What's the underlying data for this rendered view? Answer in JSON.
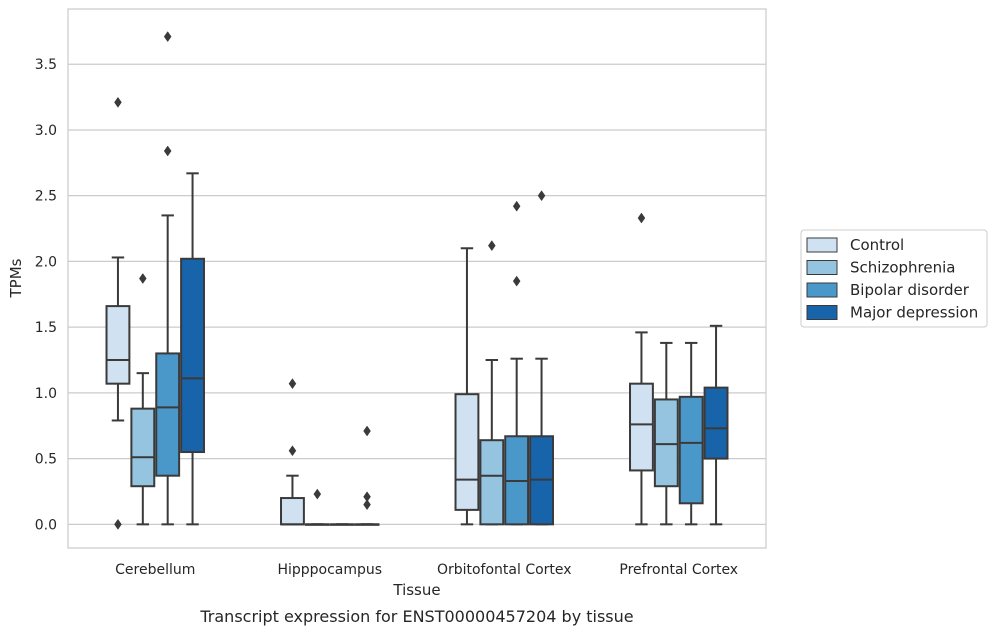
{
  "caption": "Transcript expression for ENST00000457204 by tissue",
  "chart_data": {
    "type": "box",
    "xlabel": "Tissue",
    "ylabel": "TPMs",
    "ylim": [
      -0.18,
      3.92
    ],
    "yticks": [
      "0.0",
      "0.5",
      "1.0",
      "1.5",
      "2.0",
      "2.5",
      "3.0",
      "3.5"
    ],
    "categories": [
      "Cerebellum",
      "Hipppocampus",
      "Orbitofontal Cortex",
      "Prefrontal Cortex"
    ],
    "grid": "horizontal",
    "legend_position": "right",
    "series": [
      {
        "name": "Control",
        "color": "#d0e1f2",
        "boxes": [
          {
            "whisker_low": 0.79,
            "q1": 1.07,
            "median": 1.25,
            "q3": 1.66,
            "whisker_high": 2.03,
            "outliers": [
              3.21,
              0.0
            ]
          },
          {
            "whisker_low": 0.0,
            "q1": 0.0,
            "median": 0.0,
            "q3": 0.2,
            "whisker_high": 0.37,
            "outliers": [
              0.56,
              1.07
            ]
          },
          {
            "whisker_low": 0.0,
            "q1": 0.11,
            "median": 0.34,
            "q3": 0.99,
            "whisker_high": 2.1,
            "outliers": []
          },
          {
            "whisker_low": 0.0,
            "q1": 0.41,
            "median": 0.76,
            "q3": 1.07,
            "whisker_high": 1.46,
            "outliers": [
              2.33
            ]
          }
        ]
      },
      {
        "name": "Schizophrenia",
        "color": "#94c4df",
        "boxes": [
          {
            "whisker_low": 0.0,
            "q1": 0.29,
            "median": 0.51,
            "q3": 0.88,
            "whisker_high": 1.15,
            "outliers": [
              1.87
            ]
          },
          {
            "whisker_low": 0.0,
            "q1": 0.0,
            "median": 0.0,
            "q3": 0.0,
            "whisker_high": 0.0,
            "outliers": [
              0.23
            ]
          },
          {
            "whisker_low": 0.0,
            "q1": 0.0,
            "median": 0.37,
            "q3": 0.64,
            "whisker_high": 1.25,
            "outliers": [
              2.12
            ]
          },
          {
            "whisker_low": 0.0,
            "q1": 0.29,
            "median": 0.61,
            "q3": 0.95,
            "whisker_high": 1.38,
            "outliers": []
          }
        ]
      },
      {
        "name": "Bipolar disorder",
        "color": "#4a98c9",
        "boxes": [
          {
            "whisker_low": 0.0,
            "q1": 0.37,
            "median": 0.89,
            "q3": 1.3,
            "whisker_high": 2.35,
            "outliers": [
              2.84,
              3.71
            ]
          },
          {
            "whisker_low": 0.0,
            "q1": 0.0,
            "median": 0.0,
            "q3": 0.0,
            "whisker_high": 0.0,
            "outliers": []
          },
          {
            "whisker_low": 0.0,
            "q1": 0.0,
            "median": 0.33,
            "q3": 0.67,
            "whisker_high": 1.26,
            "outliers": [
              1.85,
              2.42
            ]
          },
          {
            "whisker_low": 0.0,
            "q1": 0.16,
            "median": 0.62,
            "q3": 0.97,
            "whisker_high": 1.38,
            "outliers": []
          }
        ]
      },
      {
        "name": "Major depression",
        "color": "#1764ab",
        "boxes": [
          {
            "whisker_low": 0.0,
            "q1": 0.55,
            "median": 1.11,
            "q3": 2.02,
            "whisker_high": 2.67,
            "outliers": []
          },
          {
            "whisker_low": 0.0,
            "q1": 0.0,
            "median": 0.0,
            "q3": 0.0,
            "whisker_high": 0.0,
            "outliers": [
              0.15,
              0.21,
              0.71
            ]
          },
          {
            "whisker_low": 0.0,
            "q1": 0.0,
            "median": 0.34,
            "q3": 0.67,
            "whisker_high": 1.26,
            "outliers": [
              2.5
            ]
          },
          {
            "whisker_low": 0.0,
            "q1": 0.5,
            "median": 0.73,
            "q3": 1.04,
            "whisker_high": 1.51,
            "outliers": []
          }
        ]
      }
    ]
  }
}
